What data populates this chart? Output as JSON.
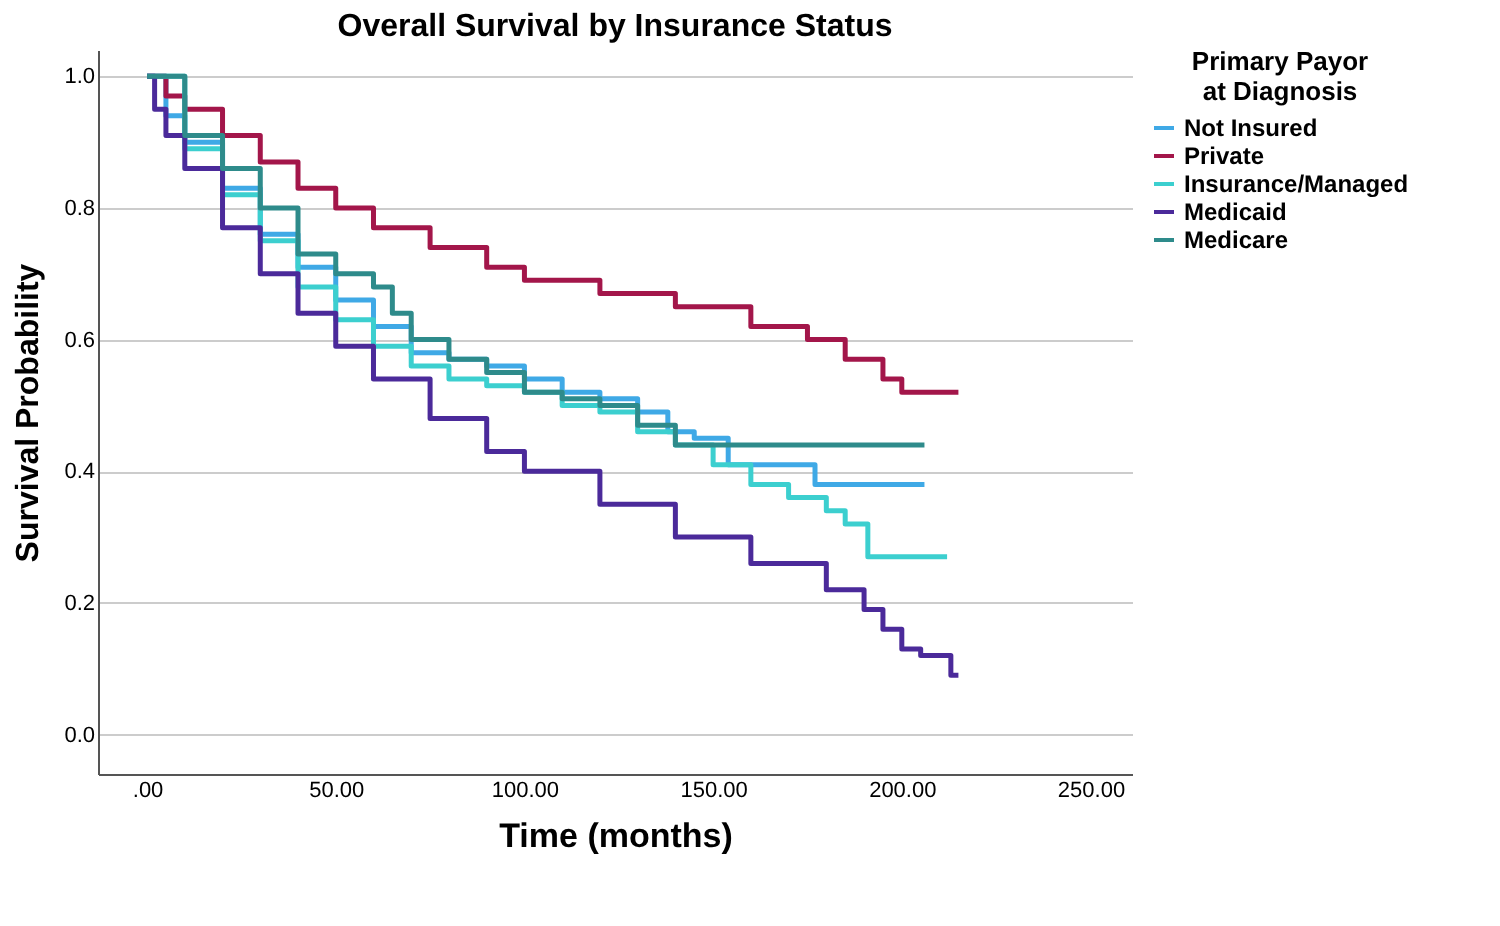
{
  "chart_data": {
    "type": "step",
    "title": "Overall Survival by Insurance Status",
    "xlabel": "Time (months)",
    "ylabel": "Survival Probability",
    "legend_title": "Primary Payor at Diagnosis",
    "legend": "top right",
    "grid": "y",
    "xlim": [
      -13,
      261
    ],
    "ylim": [
      -0.06,
      1.04
    ],
    "xticks": [
      {
        "value": 0,
        "label": ".00"
      },
      {
        "value": 50,
        "label": "50.00"
      },
      {
        "value": 100,
        "label": "100.00"
      },
      {
        "value": 150,
        "label": "150.00"
      },
      {
        "value": 200,
        "label": "200.00"
      },
      {
        "value": 250,
        "label": "250.00"
      }
    ],
    "yticks": [
      {
        "value": 0,
        "label": "0.0"
      },
      {
        "value": 0.2,
        "label": "0.2"
      },
      {
        "value": 0.4,
        "label": "0.4"
      },
      {
        "value": 0.6,
        "label": "0.6"
      },
      {
        "value": 0.8,
        "label": "0.8"
      },
      {
        "value": 1,
        "label": "1.0"
      }
    ],
    "series": [
      {
        "name": "Not Insured",
        "color": "#3fa9e6",
        "x": [
          0,
          5,
          10,
          20,
          30,
          40,
          50,
          60,
          70,
          80,
          90,
          100,
          110,
          120,
          130,
          138,
          145,
          154,
          177,
          206
        ],
        "values": [
          1.0,
          0.94,
          0.9,
          0.83,
          0.76,
          0.71,
          0.66,
          0.62,
          0.58,
          0.57,
          0.56,
          0.54,
          0.52,
          0.51,
          0.49,
          0.46,
          0.45,
          0.41,
          0.38,
          0.38
        ]
      },
      {
        "name": "Private",
        "color": "#a3164a",
        "x": [
          0,
          5,
          10,
          20,
          30,
          40,
          50,
          60,
          75,
          90,
          100,
          120,
          140,
          160,
          175,
          185,
          195,
          200,
          215
        ],
        "values": [
          1.0,
          0.97,
          0.95,
          0.91,
          0.87,
          0.83,
          0.8,
          0.77,
          0.74,
          0.71,
          0.69,
          0.67,
          0.65,
          0.62,
          0.6,
          0.57,
          0.54,
          0.52,
          0.52
        ]
      },
      {
        "name": "Insurance/Managed",
        "color": "#3ccfcf",
        "x": [
          0,
          10,
          20,
          30,
          40,
          50,
          60,
          70,
          80,
          90,
          100,
          110,
          120,
          130,
          140,
          150,
          160,
          170,
          180,
          185,
          191,
          212
        ],
        "values": [
          1.0,
          0.89,
          0.82,
          0.75,
          0.68,
          0.63,
          0.59,
          0.56,
          0.54,
          0.53,
          0.52,
          0.5,
          0.49,
          0.46,
          0.44,
          0.41,
          0.38,
          0.36,
          0.34,
          0.32,
          0.27,
          0.27
        ]
      },
      {
        "name": "Medicaid",
        "color": "#4b2a9a",
        "x": [
          0,
          2,
          5,
          10,
          20,
          30,
          40,
          50,
          60,
          75,
          90,
          100,
          120,
          140,
          160,
          180,
          190,
          195,
          200,
          205,
          213,
          215
        ],
        "values": [
          1.0,
          0.95,
          0.91,
          0.86,
          0.77,
          0.7,
          0.64,
          0.59,
          0.54,
          0.48,
          0.43,
          0.4,
          0.35,
          0.3,
          0.26,
          0.22,
          0.19,
          0.16,
          0.13,
          0.12,
          0.09,
          0.09
        ]
      },
      {
        "name": "Medicare",
        "color": "#2e8b8b",
        "x": [
          0,
          10,
          20,
          30,
          40,
          50,
          60,
          65,
          70,
          80,
          90,
          100,
          110,
          120,
          130,
          140,
          206
        ],
        "values": [
          1.0,
          0.91,
          0.86,
          0.8,
          0.73,
          0.7,
          0.68,
          0.64,
          0.6,
          0.57,
          0.55,
          0.52,
          0.51,
          0.5,
          0.47,
          0.44,
          0.44
        ]
      }
    ]
  }
}
